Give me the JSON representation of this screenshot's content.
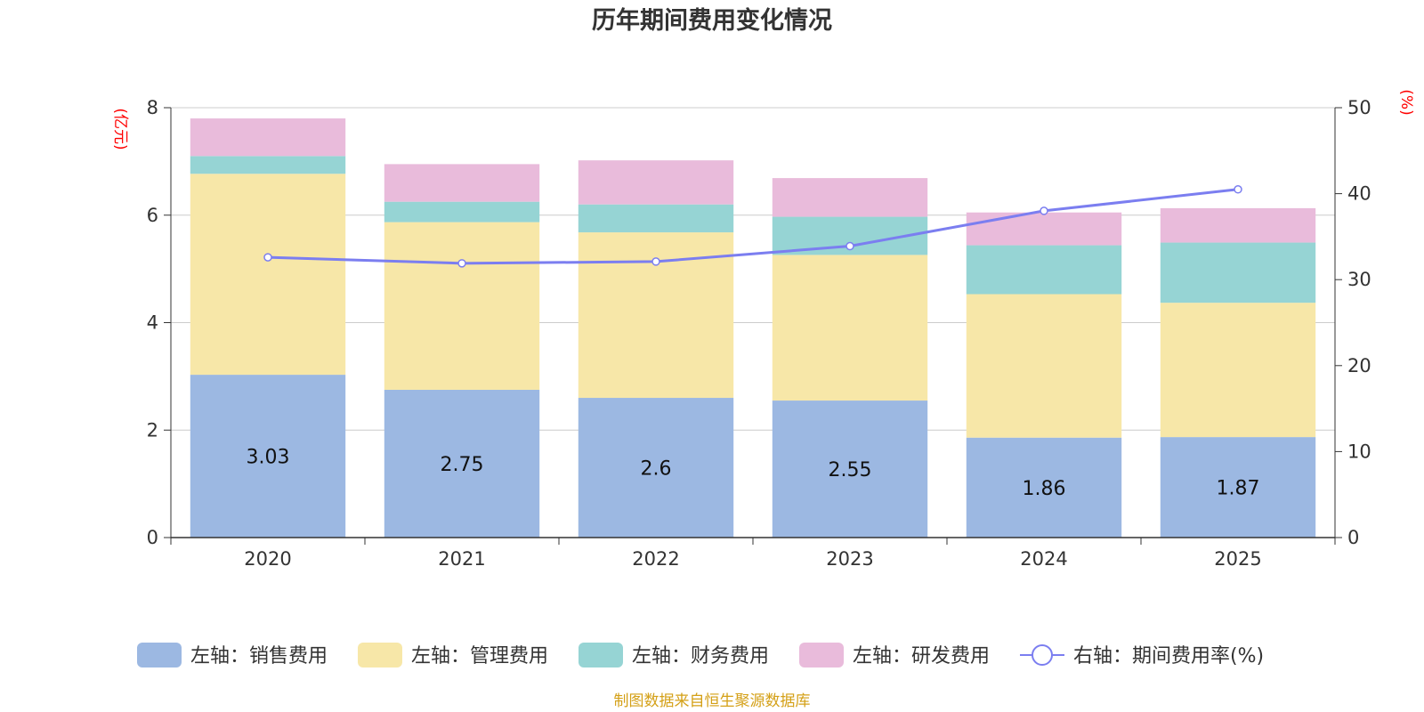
{
  "chart_data": {
    "type": "bar",
    "stacked": true,
    "title": "历年期间费用变化情况",
    "categories": [
      "2020",
      "2021",
      "2022",
      "2023",
      "2024",
      "2025"
    ],
    "y_left": {
      "unit": "(亿元)",
      "range": [
        0,
        8
      ],
      "ticks": [
        "0",
        "2",
        "4",
        "6",
        "8"
      ]
    },
    "y_right": {
      "unit": "(%)",
      "range": [
        0,
        50
      ],
      "ticks": [
        "0",
        "10",
        "20",
        "30",
        "40",
        "50"
      ]
    },
    "series": [
      {
        "name": "左轴：销售费用",
        "axis": "left",
        "color": "#9cb8e2",
        "values": [
          3.03,
          2.75,
          2.6,
          2.55,
          1.86,
          1.87
        ],
        "labels": [
          "3.03",
          "2.75",
          "2.6",
          "2.55",
          "1.86",
          "1.87"
        ]
      },
      {
        "name": "左轴：管理费用",
        "axis": "left",
        "color": "#f7e7a8",
        "values": [
          3.74,
          3.12,
          3.08,
          2.71,
          2.67,
          2.5
        ]
      },
      {
        "name": "左轴：财务费用",
        "axis": "left",
        "color": "#96d4d4",
        "values": [
          0.33,
          0.38,
          0.52,
          0.71,
          0.91,
          1.12
        ]
      },
      {
        "name": "左轴：研发费用",
        "axis": "left",
        "color": "#e9bbdb",
        "values": [
          0.7,
          0.7,
          0.82,
          0.72,
          0.61,
          0.64
        ]
      },
      {
        "name": "右轴：期间费用率(%)",
        "axis": "right",
        "type": "line",
        "color": "#7b7ef0",
        "values": [
          32.6,
          31.9,
          32.1,
          33.9,
          38.0,
          40.5
        ]
      }
    ],
    "legend_position": "bottom",
    "grid": true
  },
  "source_note": "制图数据来自恒生聚源数据库"
}
